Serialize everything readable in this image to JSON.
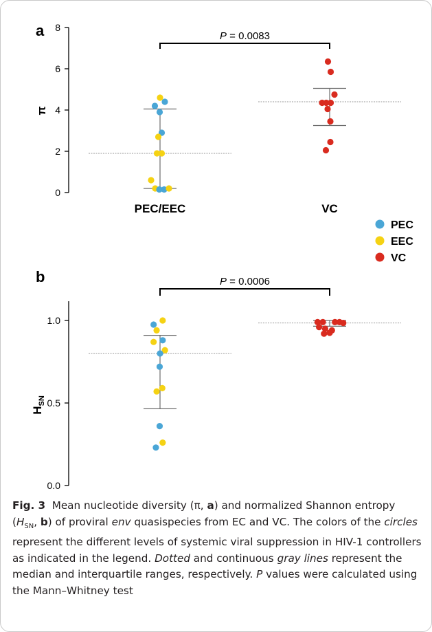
{
  "chart_data": [
    {
      "panel": "a",
      "type": "scatter",
      "ylabel": "π",
      "ylim": [
        0,
        8
      ],
      "yticks": [
        "0",
        "2",
        "4",
        "6",
        "8"
      ],
      "categories": [
        "PEC/EEC",
        "VC"
      ],
      "grid": false,
      "pvalue": {
        "prefix": "P",
        "text": " = 0.0083"
      },
      "groups": [
        {
          "category": "PEC/EEC",
          "median": 1.9,
          "iqr": [
            0.2,
            4.05
          ],
          "points": [
            {
              "g": "PEC",
              "v": 4.4,
              "dx": 0.7
            },
            {
              "g": "EEC",
              "v": 4.6,
              "dx": 0.0
            },
            {
              "g": "PEC",
              "v": 4.2,
              "dx": -0.75
            },
            {
              "g": "PEC",
              "v": 3.9,
              "dx": -0.05
            },
            {
              "g": "PEC",
              "v": 2.9,
              "dx": 0.25
            },
            {
              "g": "EEC",
              "v": 2.7,
              "dx": -0.25
            },
            {
              "g": "EEC",
              "v": 1.9,
              "dx": -0.45
            },
            {
              "g": "EEC",
              "v": 1.9,
              "dx": 0.25
            },
            {
              "g": "EEC",
              "v": 0.6,
              "dx": -1.3
            },
            {
              "g": "EEC",
              "v": 0.2,
              "dx": -0.7
            },
            {
              "g": "PEC",
              "v": 0.15,
              "dx": -0.1
            },
            {
              "g": "PEC",
              "v": 0.15,
              "dx": 0.6
            },
            {
              "g": "EEC",
              "v": 0.2,
              "dx": 1.3
            }
          ]
        },
        {
          "category": "VC",
          "median": 4.4,
          "iqr": [
            3.25,
            5.05
          ],
          "points": [
            {
              "g": "VC",
              "v": 6.35,
              "dx": -0.25
            },
            {
              "g": "VC",
              "v": 5.85,
              "dx": 0.15
            },
            {
              "g": "VC",
              "v": 4.75,
              "dx": 0.7
            },
            {
              "g": "VC",
              "v": 4.35,
              "dx": -1.1
            },
            {
              "g": "VC",
              "v": 4.35,
              "dx": -0.5
            },
            {
              "g": "VC",
              "v": 4.35,
              "dx": 0.15
            },
            {
              "g": "VC",
              "v": 4.05,
              "dx": -0.3
            },
            {
              "g": "VC",
              "v": 3.45,
              "dx": 0.1
            },
            {
              "g": "VC",
              "v": 2.45,
              "dx": 0.1
            },
            {
              "g": "VC",
              "v": 2.05,
              "dx": -0.55
            }
          ]
        }
      ]
    },
    {
      "panel": "b",
      "type": "scatter",
      "ylabel": "H",
      "ylabel_sub": "SN",
      "ylim": [
        0.0,
        1.0
      ],
      "yticks": [
        "0.0",
        "0.5",
        "1.0"
      ],
      "categories": [
        "PEC/EEC",
        "VC"
      ],
      "grid": false,
      "pvalue": {
        "prefix": "P",
        "text": " = 0.0006"
      },
      "groups": [
        {
          "category": "PEC/EEC",
          "median": 0.8,
          "iqr": [
            0.465,
            0.91
          ],
          "points": [
            {
              "g": "EEC",
              "v": 1.0,
              "dx": 0.35
            },
            {
              "g": "PEC",
              "v": 0.975,
              "dx": -0.85
            },
            {
              "g": "EEC",
              "v": 0.94,
              "dx": -0.45
            },
            {
              "g": "PEC",
              "v": 0.88,
              "dx": 0.35
            },
            {
              "g": "EEC",
              "v": 0.87,
              "dx": -0.85
            },
            {
              "g": "EEC",
              "v": 0.82,
              "dx": 0.65
            },
            {
              "g": "PEC",
              "v": 0.8,
              "dx": 0.0
            },
            {
              "g": "PEC",
              "v": 0.72,
              "dx": -0.05
            },
            {
              "g": "EEC",
              "v": 0.59,
              "dx": 0.3
            },
            {
              "g": "EEC",
              "v": 0.57,
              "dx": -0.45
            },
            {
              "g": "PEC",
              "v": 0.36,
              "dx": -0.05
            },
            {
              "g": "EEC",
              "v": 0.26,
              "dx": 0.35
            },
            {
              "g": "PEC",
              "v": 0.23,
              "dx": -0.55
            }
          ]
        },
        {
          "category": "VC",
          "median": 0.985,
          "iqr": [
            0.965,
            1.0
          ],
          "points": [
            {
              "g": "VC",
              "v": 0.99,
              "dx": -1.6
            },
            {
              "g": "VC",
              "v": 0.99,
              "dx": -0.9
            },
            {
              "g": "VC",
              "v": 0.99,
              "dx": 0.7
            },
            {
              "g": "VC",
              "v": 0.99,
              "dx": 1.3
            },
            {
              "g": "VC",
              "v": 0.985,
              "dx": 1.8
            },
            {
              "g": "VC",
              "v": 0.96,
              "dx": -1.4
            },
            {
              "g": "VC",
              "v": 0.95,
              "dx": -0.6
            },
            {
              "g": "VC",
              "v": 0.94,
              "dx": 0.3
            },
            {
              "g": "VC",
              "v": 0.92,
              "dx": -0.75
            },
            {
              "g": "VC",
              "v": 0.925,
              "dx": 0.0
            }
          ]
        }
      ]
    }
  ],
  "legend": [
    {
      "label": "PEC",
      "color": "#4aa6d6"
    },
    {
      "label": "EEC",
      "color": "#f5d213"
    },
    {
      "label": "VC",
      "color": "#d92b1f"
    }
  ],
  "colors": {
    "PEC": "#4aa6d6",
    "EEC": "#f5d213",
    "VC": "#d92b1f",
    "median_line": "#9a9a9a",
    "iqr_line": "#6b6b6b"
  },
  "caption": {
    "fig_label": "Fig. 3",
    "t1": "Mean nucleotide diversity (π, ",
    "t1b": "a",
    "t2": ") and normalized Shannon entropy (",
    "t2i": "H",
    "t2sub": "SN",
    "t3": ", ",
    "t3b": "b",
    "t4": ") of proviral ",
    "t4i": "env",
    "t5": " quasispecies from EC and VC. The colors of the ",
    "t5i": "circles",
    "t6": " represent the different levels of systemic viral suppression in HIV-1 controllers as indicated in the legend. ",
    "t6i": "Dotted",
    "t7": " and continuous ",
    "t7i": "gray lines",
    "t8": " represent the median and interquartile ranges, respectively. ",
    "t8i": "P",
    "t9": " values were calculated using the Mann–Whitney test"
  }
}
